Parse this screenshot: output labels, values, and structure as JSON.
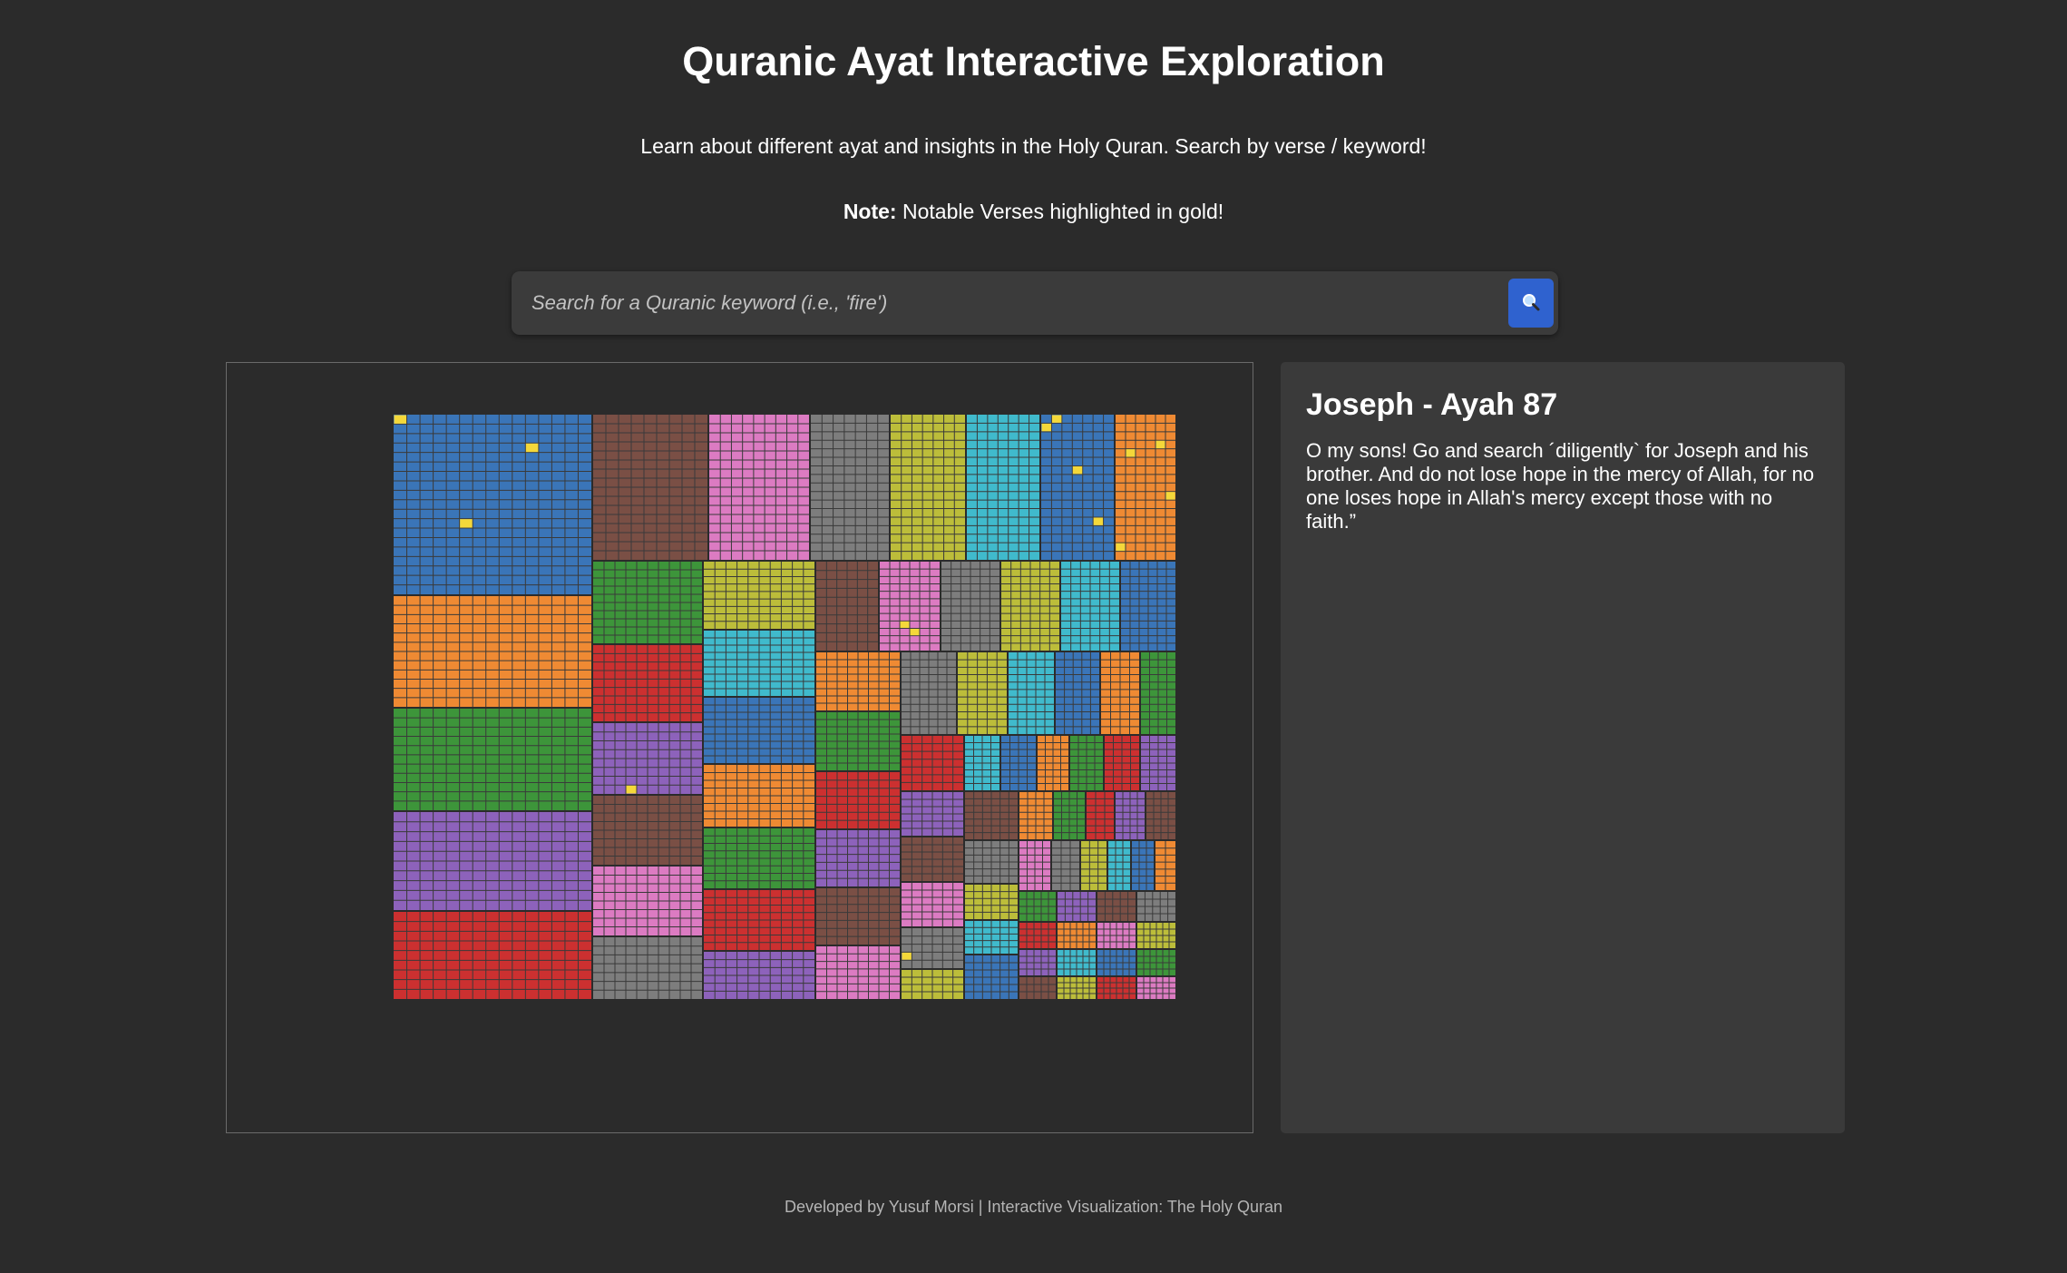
{
  "header": {
    "title": "Quranic Ayat Interactive Exploration",
    "subtitle": "Learn about different ayat and insights in the Holy Quran. Search by verse / keyword!",
    "note_label": "Note:",
    "note_text": "Notable Verses highlighted in gold!"
  },
  "search": {
    "placeholder": "Search for a Quranic keyword (i.e., 'fire')",
    "value": "",
    "button_icon": "search-icon"
  },
  "detail": {
    "title": "Joseph - Ayah 87",
    "text": "O my sons! Go and search ´diligently` for Joseph and his brother. And do not lose hope in the mercy of Allah, for no one loses hope in Allah's mercy except those with no faith.”"
  },
  "footer": {
    "text": "Developed by Yusuf Morsi | Interactive Visualization: The Holy Quran"
  },
  "colors": {
    "background": "#2b2b2b",
    "panel": "#3a3a3a",
    "accent": "#2f62cf",
    "highlight_gold": "#f4d83a",
    "cell_border": "#3a3a3a",
    "palette": [
      "#3a75b8",
      "#ef8a33",
      "#3d953a",
      "#cc3030",
      "#8d62bb",
      "#7a4f45",
      "#dc7bc2",
      "#7d7d7d",
      "#bcbd3a",
      "#40bacc"
    ]
  }
}
